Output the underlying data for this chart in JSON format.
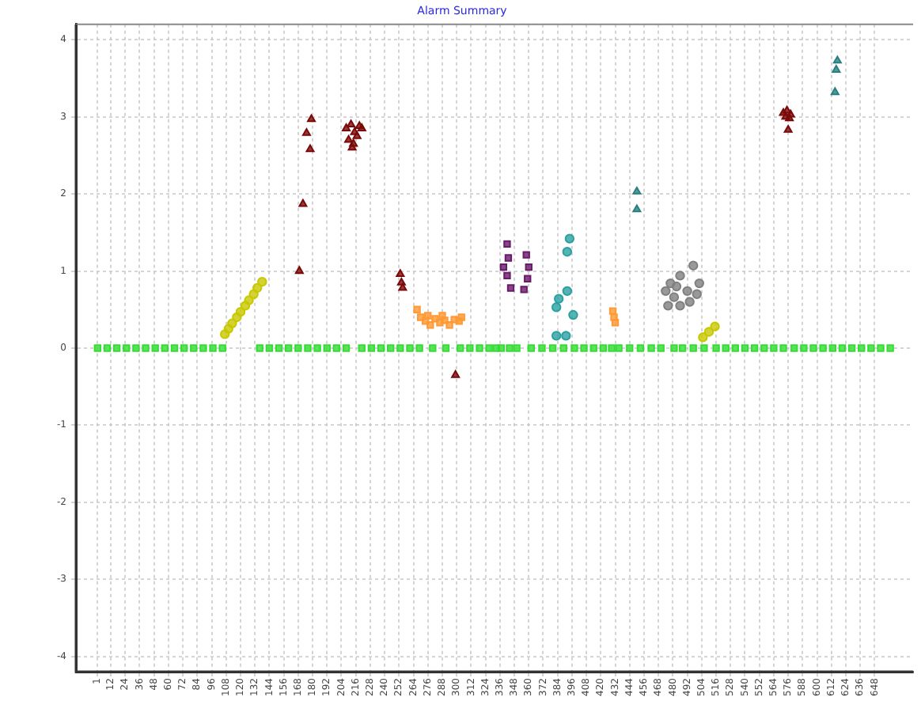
{
  "chart_data": {
    "type": "scatter",
    "title": "Alarm Summary",
    "xlim": [
      -17,
      680
    ],
    "xticks": [
      1,
      12,
      24,
      36,
      48,
      60,
      72,
      84,
      96,
      108,
      120,
      132,
      144,
      156,
      168,
      180,
      192,
      204,
      216,
      228,
      240,
      252,
      264,
      276,
      288,
      300,
      312,
      324,
      336,
      348,
      360,
      372,
      384,
      396,
      408,
      420,
      432,
      444,
      456,
      468,
      480,
      492,
      504,
      516,
      528,
      540,
      552,
      564,
      576,
      588,
      600,
      612,
      624,
      636,
      648
    ],
    "ylim": [
      -4.2,
      4.2
    ],
    "yticks": [
      -4,
      -3,
      -2,
      -1,
      0,
      1,
      2,
      3,
      4
    ],
    "grid": true,
    "legend": false,
    "series": [
      {
        "color": "#33dd33",
        "marker": "square",
        "x": [
          1,
          9,
          17,
          25,
          33,
          41,
          49,
          57,
          65,
          73,
          81,
          89,
          97,
          105,
          136,
          144,
          152,
          160,
          168,
          176,
          184,
          192,
          200,
          208,
          221,
          229,
          237,
          245,
          253,
          261,
          269,
          280,
          291,
          303,
          311,
          319,
          327,
          333,
          337,
          344,
          350,
          362,
          371,
          380,
          389,
          398,
          406,
          414,
          422,
          429,
          435,
          444,
          453,
          462,
          470,
          481,
          488,
          497,
          506,
          516,
          524,
          532,
          540,
          548,
          556,
          564,
          572,
          581,
          589,
          597,
          605,
          613,
          621,
          629,
          637,
          645,
          653,
          661
        ],
        "values": [
          0,
          0,
          0,
          0,
          0,
          0,
          0,
          0,
          0,
          0,
          0,
          0,
          0,
          0,
          0,
          0,
          0,
          0,
          0,
          0,
          0,
          0,
          0,
          0,
          0,
          0,
          0,
          0,
          0,
          0,
          0,
          0,
          0,
          0,
          0,
          0,
          0,
          0,
          0,
          0,
          0,
          0,
          0,
          0,
          0,
          0,
          0,
          0,
          0,
          0,
          0,
          0,
          0,
          0,
          0,
          0,
          0,
          0,
          0,
          0,
          0,
          0,
          0,
          0,
          0,
          0,
          0,
          0,
          0,
          0,
          0,
          0,
          0,
          0,
          0,
          0,
          0,
          0
        ]
      },
      {
        "color": "#c8c800",
        "marker": "circle",
        "x": [
          107,
          110,
          113,
          117,
          120,
          124,
          127,
          131,
          134,
          138,
          505,
          510,
          515
        ],
        "values": [
          0.18,
          0.25,
          0.32,
          0.4,
          0.47,
          0.55,
          0.62,
          0.7,
          0.78,
          0.86,
          0.14,
          0.21,
          0.28
        ]
      },
      {
        "color": "#7a0a0a",
        "marker": "triangle",
        "x": [
          179,
          175,
          178,
          172,
          169,
          208,
          212,
          215,
          219,
          210,
          214,
          217,
          221,
          213,
          253,
          254,
          255,
          299,
          572,
          575,
          578,
          574,
          577,
          576
        ],
        "values": [
          2.97,
          2.79,
          2.58,
          1.87,
          1.0,
          2.85,
          2.9,
          2.8,
          2.88,
          2.7,
          2.65,
          2.75,
          2.85,
          2.6,
          0.96,
          0.85,
          0.78,
          -0.35,
          3.05,
          3.08,
          3.03,
          3.0,
          2.98,
          2.83
        ]
      },
      {
        "color": "#ff9933",
        "marker": "square",
        "x": [
          267,
          270,
          274,
          278,
          282,
          286,
          290,
          294,
          298,
          302,
          304,
          276,
          288,
          430,
          431,
          432
        ],
        "values": [
          0.5,
          0.4,
          0.35,
          0.3,
          0.38,
          0.33,
          0.36,
          0.3,
          0.37,
          0.35,
          0.4,
          0.42,
          0.42,
          0.48,
          0.4,
          0.33
        ]
      },
      {
        "color": "#6a1a6a",
        "marker": "square",
        "x": [
          342,
          343,
          339,
          342,
          345,
          358,
          360,
          359,
          356
        ],
        "values": [
          1.35,
          1.17,
          1.05,
          0.94,
          0.78,
          1.21,
          1.05,
          0.9,
          0.76
        ]
      },
      {
        "color": "#2aa0a0",
        "marker": "circle",
        "x": [
          394,
          392,
          385,
          383,
          392,
          397,
          391,
          383
        ],
        "values": [
          1.42,
          1.25,
          0.64,
          0.53,
          0.74,
          0.43,
          0.16,
          0.16
        ]
      },
      {
        "color": "#2a8080",
        "marker": "triangle",
        "x": [
          450,
          450,
          617,
          616,
          615
        ],
        "values": [
          2.03,
          1.8,
          3.73,
          3.61,
          3.32
        ]
      },
      {
        "color": "#808080",
        "marker": "circle",
        "x": [
          497,
          486,
          478,
          474,
          481,
          492,
          500,
          476,
          486,
          494,
          502,
          483
        ],
        "values": [
          1.07,
          0.94,
          0.84,
          0.74,
          0.66,
          0.74,
          0.7,
          0.55,
          0.55,
          0.6,
          0.84,
          0.8
        ]
      }
    ]
  }
}
